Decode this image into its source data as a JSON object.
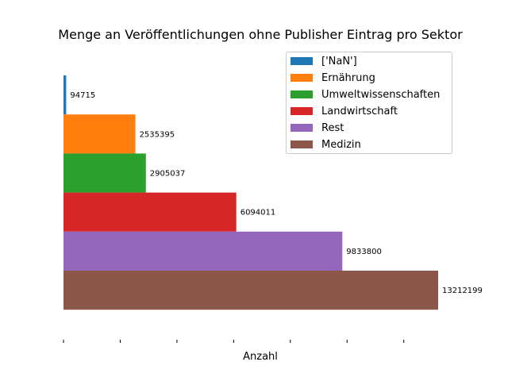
{
  "chart_data": {
    "type": "bar",
    "orientation": "horizontal",
    "title": "Menge an Veröffentlichungen ohne Publisher Eintrag pro Sektor",
    "xlabel": "Anzahl",
    "ylabel": "",
    "xlim": [
      0,
      14000000
    ],
    "x_ticks": [
      0,
      2000000,
      4000000,
      6000000,
      8000000,
      10000000,
      12000000
    ],
    "x_tick_labels_visible": false,
    "grid": false,
    "legend_position": "top-right",
    "series": [
      {
        "name": "['NaN']",
        "value": 94715,
        "label": "94715",
        "color": "#1f77b4"
      },
      {
        "name": "Ernährung",
        "value": 2535395,
        "label": "2535395",
        "color": "#ff7f0e"
      },
      {
        "name": "Umweltwissenschaften",
        "value": 2905037,
        "label": "2905037",
        "color": "#2ca02c"
      },
      {
        "name": "Landwirtschaft",
        "value": 6094011,
        "label": "6094011",
        "color": "#d62728"
      },
      {
        "name": "Rest",
        "value": 9833800,
        "label": "9833800",
        "color": "#9467bd"
      },
      {
        "name": "Medizin",
        "value": 13212199,
        "label": "13212199",
        "color": "#8c564b"
      }
    ]
  }
}
